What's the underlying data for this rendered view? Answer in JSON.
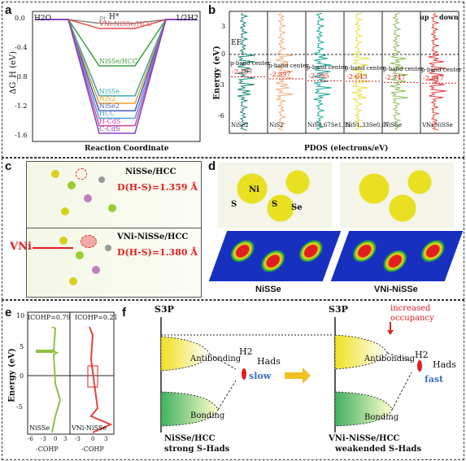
{
  "figure": {
    "panels": {
      "a": {
        "label": "a",
        "ylabel": "ΔG_H (eV)",
        "xlabel": "Reaction Coordinate",
        "start_label": "H2O",
        "mid_label": "H*",
        "end_label": "1/2H2",
        "ticks": [
          "0.0",
          "-0.4",
          "-0.8",
          "-1.2",
          "-1.6"
        ],
        "colors": [
          "#5aa8e0",
          "#888888",
          "#e44c4c",
          "#3aa040",
          "#3aa7b3",
          "#f0a020",
          "#4a58c0",
          "#4aa0e0",
          "#d04aa0",
          "#8040c0"
        ],
        "curves": [
          {
            "name": "Pt",
            "value": -0.05,
            "color": "#888888"
          },
          {
            "name": "VNi-NiSSe/HCC",
            "value": -0.12,
            "color": "#e44c4c"
          },
          {
            "name": "NiSSe/HCC",
            "value": -0.62,
            "color": "#3aa040"
          },
          {
            "name": "NiSSe",
            "value": -1.02,
            "color": "#3aa7b3"
          },
          {
            "name": "NiS2",
            "value": -1.12,
            "color": "#f0a020"
          },
          {
            "name": "NiSe2",
            "value": -1.22,
            "color": "#4a58c0"
          },
          {
            "name": "HCC",
            "value": -1.32,
            "color": "#4aa0e0"
          },
          {
            "name": "H-CdS",
            "value": -1.42,
            "color": "#d04aa0"
          },
          {
            "name": "C-CdS",
            "value": -1.52,
            "color": "#8040c0"
          }
        ]
      },
      "b": {
        "label": "b",
        "ylabel": "Energy (eV)",
        "xlabel": "PDOS (electrons/eV)",
        "ef_label": "EF",
        "up": "up",
        "down": "down",
        "ticks": [
          "3",
          "0",
          "-3",
          "-6"
        ],
        "band_label": "p-band center",
        "columns": [
          {
            "name": "NiSe2",
            "center": "-2.197",
            "color": "#1a8a7a"
          },
          {
            "name": "NiS2",
            "center": "-2.397",
            "color": "#f0b080"
          },
          {
            "name": "NiS0.67Se1.33",
            "center": "-2.595",
            "color": "#1aaa9a"
          },
          {
            "name": "NiS1.33Se0.67",
            "center": "-2.643",
            "color": "#e8e050"
          },
          {
            "name": "NiSSe",
            "center": "-2.747",
            "color": "#90c060"
          },
          {
            "name": "VNi-NiSSe",
            "center": "-2.817",
            "color": "#e84040"
          }
        ]
      },
      "c": {
        "label": "c",
        "top_title": "NiSSe/HCC",
        "top_dist": "D(H-S)=1.359 Å",
        "bottom_title": "VNi-NiSSe/HCC",
        "bottom_dist": "D(H-S)=1.380 Å",
        "vacancy": "VNi"
      },
      "d": {
        "label": "d",
        "left_caption": "NiSSe",
        "right_caption": "VNi-NiSSe",
        "atoms": [
          "Ni",
          "S",
          "S",
          "Se"
        ]
      },
      "e": {
        "label": "e",
        "left_icohp": "ICOHP=0.79",
        "right_icohp": "ICOHP=0.21",
        "ylabel": "Energy (eV)",
        "xlabel": "-COHP",
        "left_name": "NiSSe",
        "right_name": "VNi-NiSSe",
        "yticks": [
          "10",
          "5",
          "0",
          "-5"
        ],
        "xticks_left": [
          "-6",
          "-3",
          "0",
          "3"
        ],
        "xticks_right": [
          "-3",
          "0",
          "3"
        ]
      },
      "f": {
        "label": "f",
        "s3p": "S3P",
        "antibonding": "Antibonding",
        "bonding": "Bonding",
        "h2": "H2",
        "hads": "Hads",
        "slow": "slow",
        "fast": "fast",
        "increased": "increased",
        "occupancy": "occupancy",
        "left_caption1": "NiSSe/HCC",
        "left_caption2": "strong S-Hads",
        "right_caption1": "VNi-NiSSe/HCC",
        "right_caption2": "weakended S-Hads"
      }
    }
  }
}
